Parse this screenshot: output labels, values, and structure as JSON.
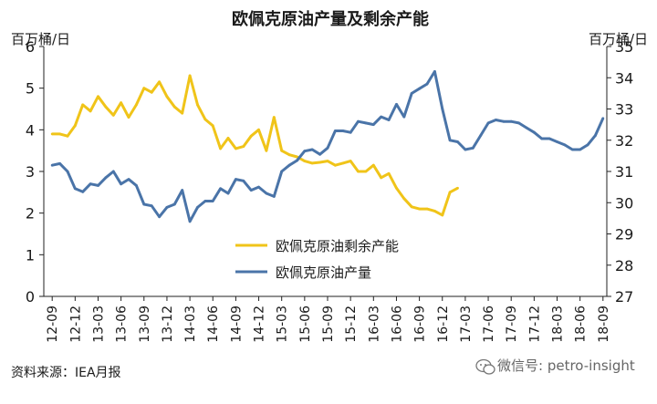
{
  "chart_data": {
    "type": "line",
    "title": "欧佩克原油产量及剩余产能",
    "left_axis_unit": "百万桶/日",
    "right_axis_unit": "百万桶/日",
    "ylim_left": [
      0,
      6
    ],
    "ylim_right": [
      27,
      35
    ],
    "yticks_left": [
      "0",
      "1",
      "2",
      "3",
      "4",
      "5",
      "6"
    ],
    "yticks_right": [
      "27",
      "28",
      "29",
      "30",
      "31",
      "32",
      "33",
      "34",
      "35"
    ],
    "x_tick_labels": [
      "12-09",
      "12-12",
      "13-03",
      "13-06",
      "13-09",
      "13-12",
      "14-03",
      "14-06",
      "14-09",
      "14-12",
      "15-03",
      "15-06",
      "15-09",
      "15-12",
      "16-03",
      "16-06",
      "16-09",
      "16-12",
      "17-03",
      "17-06",
      "17-09",
      "17-12",
      "18-03",
      "18-06",
      "18-09"
    ],
    "x": [
      "12-09",
      "12-10",
      "12-11",
      "12-12",
      "13-01",
      "13-02",
      "13-03",
      "13-04",
      "13-05",
      "13-06",
      "13-07",
      "13-08",
      "13-09",
      "13-10",
      "13-11",
      "13-12",
      "14-01",
      "14-02",
      "14-03",
      "14-04",
      "14-05",
      "14-06",
      "14-07",
      "14-08",
      "14-09",
      "14-10",
      "14-11",
      "14-12",
      "15-01",
      "15-02",
      "15-03",
      "15-04",
      "15-05",
      "15-06",
      "15-07",
      "15-08",
      "15-09",
      "15-10",
      "15-11",
      "15-12",
      "16-01",
      "16-02",
      "16-03",
      "16-04",
      "16-05",
      "16-06",
      "16-07",
      "16-08",
      "16-09",
      "16-10",
      "16-11",
      "16-12",
      "17-01",
      "17-02",
      "17-03",
      "17-04",
      "17-05",
      "17-06",
      "17-07",
      "17-08",
      "17-09",
      "17-10",
      "17-11",
      "17-12",
      "18-01",
      "18-02",
      "18-03",
      "18-04",
      "18-05",
      "18-06",
      "18-07",
      "18-08",
      "18-09"
    ],
    "series": [
      {
        "name": "欧佩克原油剩余产能",
        "axis": "left",
        "color": "#f0c419",
        "values": [
          3.9,
          3.9,
          3.85,
          4.1,
          4.6,
          4.45,
          4.8,
          4.55,
          4.35,
          4.65,
          4.3,
          4.6,
          5.0,
          4.9,
          5.15,
          4.8,
          4.55,
          4.4,
          5.3,
          4.6,
          4.25,
          4.1,
          3.55,
          3.8,
          3.55,
          3.6,
          3.85,
          4.0,
          3.5,
          4.3,
          3.5,
          3.4,
          3.35,
          3.25,
          3.2,
          3.22,
          3.25,
          3.15,
          3.2,
          3.25,
          3.0,
          3.0,
          3.15,
          2.85,
          2.95,
          2.6,
          2.35,
          2.15,
          2.1,
          2.1,
          2.05,
          1.95,
          2.5,
          2.6,
          null,
          null,
          null,
          null,
          null,
          null,
          null,
          null,
          null,
          null,
          null,
          null,
          null,
          null,
          null,
          null,
          null,
          null,
          null
        ]
      },
      {
        "name": "欧佩克原油产量",
        "axis": "right",
        "color": "#4a74a8",
        "values": [
          31.2,
          31.25,
          31.0,
          30.45,
          30.35,
          30.6,
          30.55,
          30.8,
          31.0,
          30.6,
          30.75,
          30.55,
          29.95,
          29.9,
          29.55,
          29.85,
          29.95,
          30.4,
          29.4,
          29.85,
          30.05,
          30.05,
          30.45,
          30.3,
          30.75,
          30.7,
          30.4,
          30.5,
          30.3,
          30.2,
          31.0,
          31.2,
          31.35,
          31.65,
          31.7,
          31.55,
          31.75,
          32.3,
          32.3,
          32.25,
          32.6,
          32.55,
          32.5,
          32.75,
          32.65,
          33.15,
          32.75,
          33.5,
          33.65,
          33.8,
          34.2,
          33.0,
          32.0,
          31.95,
          31.7,
          31.75,
          32.15,
          32.55,
          32.65,
          32.6,
          32.6,
          32.55,
          32.4,
          32.25,
          32.05,
          32.05,
          31.95,
          31.85,
          31.7,
          31.7,
          31.85,
          32.15,
          32.7
        ]
      }
    ],
    "legend_position": "center",
    "grid": false
  },
  "source_label": "资料来源：IEA月报",
  "watermark": "微信号: petro-insight"
}
